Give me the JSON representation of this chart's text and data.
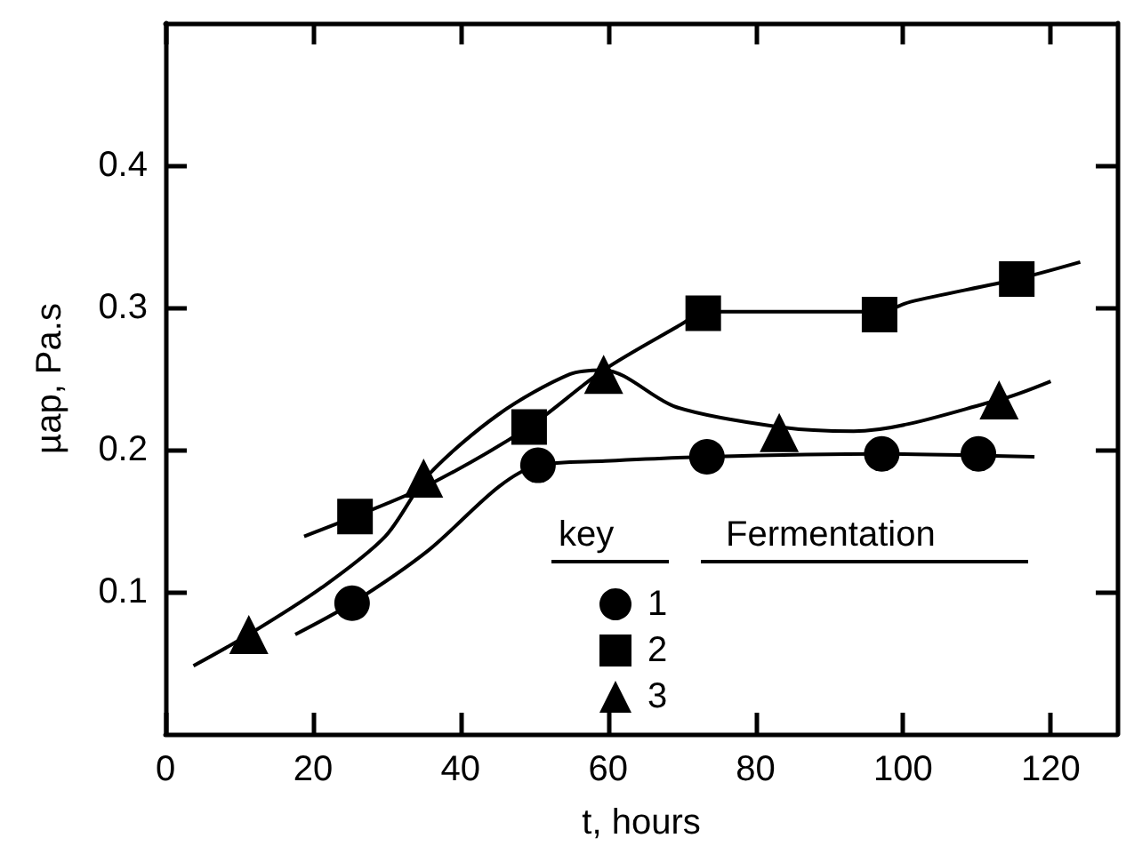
{
  "chart_data": {
    "type": "scatter",
    "xlabel": "t, hours",
    "ylabel": "µap, Pa.s",
    "xlim": [
      0,
      129
    ],
    "xticks": [
      0,
      20,
      40,
      60,
      80,
      100,
      120
    ],
    "ylim": [
      0,
      0.5
    ],
    "yticks": [
      0.1,
      0.2,
      0.3,
      0.4
    ],
    "legend": "bottom",
    "legend_title": "key",
    "annotations": [
      "Fermentation"
    ],
    "grid": false,
    "series": [
      {
        "name": "1",
        "color": "#000000",
        "marker": "circle",
        "x": [
          25.3,
          50.5,
          73.4,
          97.1,
          110.2
        ],
        "values": [
          0.092,
          0.189,
          0.195,
          0.197,
          0.197
        ]
      },
      {
        "name": "2",
        "color": "#000000",
        "marker": "square",
        "x": [
          25.7,
          49.3,
          72.9,
          96.8,
          115.4
        ],
        "values": [
          0.153,
          0.216,
          0.296,
          0.295,
          0.32
        ]
      },
      {
        "name": "3",
        "color": "#000000",
        "marker": "triangle",
        "x": [
          11.3,
          35,
          59.4,
          83.2,
          113
        ],
        "values": [
          0.07,
          0.18,
          0.253,
          0.212,
          0.235
        ]
      },
      {
        "type": "line",
        "color": "#000000",
        "marker": "none",
        "x": [
          17.6,
          25.3,
          35.6,
          45.2,
          50.5,
          59.6,
          73.4,
          97.1,
          117.8
        ],
        "values": [
          0.07,
          0.092,
          0.129,
          0.174,
          0.189,
          0.192,
          0.195,
          0.197,
          0.195
        ]
      },
      {
        "type": "line",
        "color": "#000000",
        "marker": "none",
        "x": [
          18.8,
          25.7,
          35.6,
          49.3,
          59.4,
          70.2,
          72.9,
          96.8,
          101,
          115.4,
          124
        ],
        "values": [
          0.139,
          0.153,
          0.175,
          0.216,
          0.256,
          0.289,
          0.297,
          0.297,
          0.304,
          0.32,
          0.332
        ]
      },
      {
        "type": "line",
        "color": "#000000",
        "marker": "none",
        "x": [
          3.8,
          11.3,
          21.2,
          29.8,
          35.6,
          45.2,
          54.8,
          59.4,
          69.2,
          83.2,
          93.3,
          113,
          120
        ],
        "values": [
          0.048,
          0.07,
          0.103,
          0.139,
          0.182,
          0.225,
          0.253,
          0.256,
          0.23,
          0.216,
          0.213,
          0.235,
          0.248
        ]
      }
    ]
  }
}
